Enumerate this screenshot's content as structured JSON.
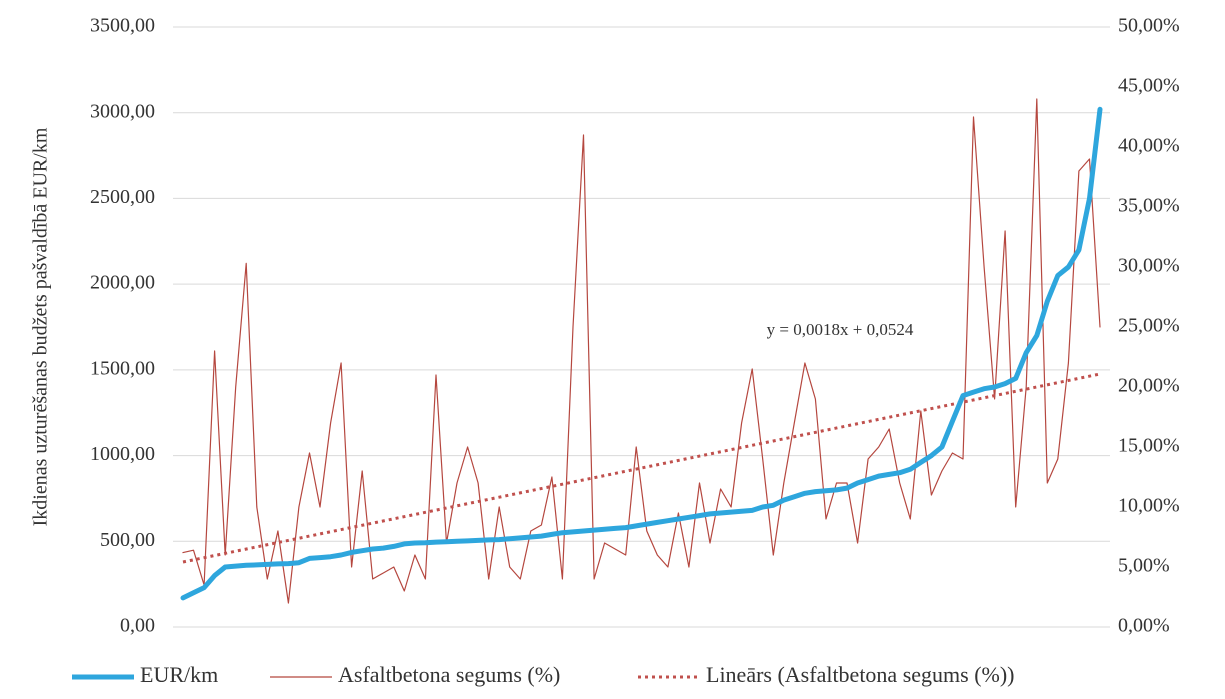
{
  "chart_data": {
    "type": "line",
    "y_axis_label": "Ikdienas uzturēšanas budžets pašvaldībā EUR/km",
    "annotation": "y = 0,0018x + 0,0524",
    "ylim": [
      0,
      3500
    ],
    "yticks": [
      {
        "value": 0,
        "label": "0,00"
      },
      {
        "value": 500,
        "label": "500,00"
      },
      {
        "value": 1000,
        "label": "1000,00"
      },
      {
        "value": 1500,
        "label": "1500,00"
      },
      {
        "value": 2000,
        "label": "2000,00"
      },
      {
        "value": 2500,
        "label": "2500,00"
      },
      {
        "value": 3000,
        "label": "3000,00"
      },
      {
        "value": 3500,
        "label": "3500,00"
      }
    ],
    "y2lim": [
      0,
      50
    ],
    "y2ticks": [
      {
        "value": 0,
        "label": "0,00%"
      },
      {
        "value": 5,
        "label": "5,00%"
      },
      {
        "value": 10,
        "label": "10,00%"
      },
      {
        "value": 15,
        "label": "15,00%"
      },
      {
        "value": 20,
        "label": "20,00%"
      },
      {
        "value": 25,
        "label": "25,00%"
      },
      {
        "value": 30,
        "label": "30,00%"
      },
      {
        "value": 35,
        "label": "35,00%"
      },
      {
        "value": 40,
        "label": "40,00%"
      },
      {
        "value": 45,
        "label": "45,00%"
      },
      {
        "value": 50,
        "label": "50,00%"
      }
    ],
    "grid": true,
    "legend": "bottom",
    "series": [
      {
        "name": "EUR/km",
        "color": "#2ea6dd",
        "width": 5,
        "values": [
          170,
          200,
          230,
          300,
          350,
          355,
          360,
          362,
          365,
          368,
          370,
          375,
          400,
          405,
          410,
          420,
          435,
          445,
          455,
          460,
          470,
          485,
          490,
          492,
          495,
          497,
          500,
          502,
          505,
          508,
          510,
          515,
          520,
          525,
          530,
          540,
          550,
          555,
          560,
          565,
          570,
          575,
          580,
          590,
          600,
          610,
          620,
          630,
          640,
          650,
          660,
          665,
          670,
          675,
          680,
          700,
          710,
          740,
          760,
          780,
          790,
          795,
          800,
          810,
          840,
          860,
          880,
          890,
          900,
          920,
          960,
          1000,
          1050,
          1200,
          1350,
          1370,
          1390,
          1400,
          1420,
          1450,
          1600,
          1700,
          1900,
          2050,
          2100,
          2200,
          2500,
          3020
        ]
      },
      {
        "name": "Asfaltbetona segums (%)",
        "color": "#b5473f",
        "width": 1.2,
        "axis": "y2",
        "values": [
          6.2,
          6.4,
          3.5,
          23,
          6,
          20,
          30.3,
          10,
          4,
          8,
          2,
          10,
          14.5,
          10,
          17,
          22,
          5,
          13,
          4,
          4.5,
          5,
          3,
          6,
          4,
          21,
          7,
          12,
          15,
          12,
          4,
          10,
          5,
          4,
          8,
          8.5,
          12.5,
          4,
          25,
          41,
          4,
          7,
          6.5,
          6,
          15,
          8,
          6,
          5,
          9.5,
          5,
          12,
          7,
          11.5,
          10,
          17,
          21.5,
          14,
          6,
          12,
          17,
          22,
          19,
          9,
          12,
          12,
          7,
          14,
          15,
          16.5,
          12,
          9,
          18,
          11,
          13,
          14.5,
          14,
          42.5,
          30,
          19,
          33,
          10,
          20,
          44,
          12,
          14,
          22,
          38,
          39,
          25
        ]
      },
      {
        "name": "Lineārs (Asfaltbetona segums (%))",
        "color": "#c0504d",
        "width": 3,
        "dash": "3 4",
        "axis": "y2",
        "x": [
          1,
          88
        ],
        "values": [
          5.42,
          21.08
        ]
      }
    ]
  }
}
